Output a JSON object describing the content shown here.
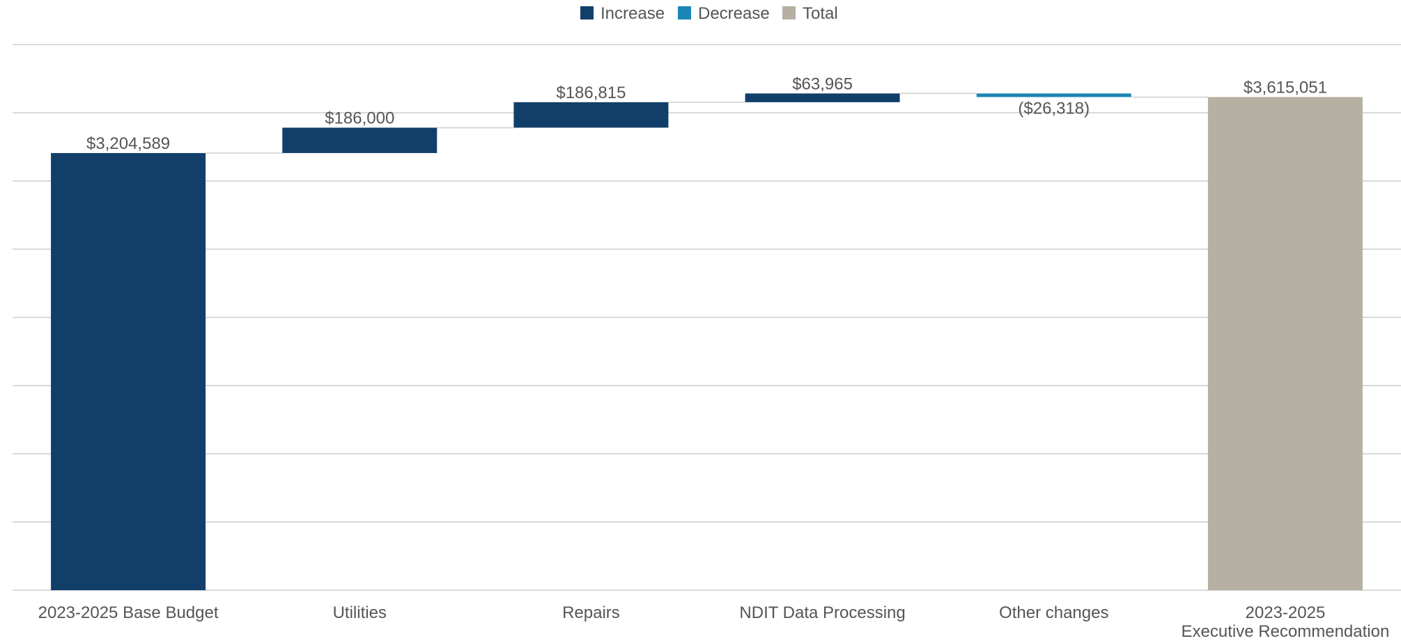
{
  "legend": [
    {
      "name": "Increase",
      "color": "#123f69"
    },
    {
      "name": "Decrease",
      "color": "#1a86b4"
    },
    {
      "name": "Total",
      "color": "#b6b0a2"
    }
  ],
  "chart_data": {
    "type": "bar",
    "subtype": "waterfall",
    "title": "",
    "xlabel": "",
    "ylabel": "",
    "ylim": [
      0,
      4000000
    ],
    "grid": true,
    "legend_position": "top-center",
    "categories": [
      [
        "2023-2025 Base Budget"
      ],
      [
        "Utilities"
      ],
      [
        "Repairs"
      ],
      [
        "NDIT Data Processing"
      ],
      [
        "Other changes"
      ],
      [
        "2023-2025",
        "Executive Recommendation"
      ]
    ],
    "values": [
      3204589,
      186000,
      186815,
      63965,
      -26318,
      3615051
    ],
    "kinds": [
      "Increase",
      "Increase",
      "Increase",
      "Increase",
      "Decrease",
      "Total"
    ],
    "labels": [
      "$3,204,589",
      "$186,000",
      "$186,815",
      "$63,965",
      "($26,318)",
      "$3,615,051"
    ]
  }
}
